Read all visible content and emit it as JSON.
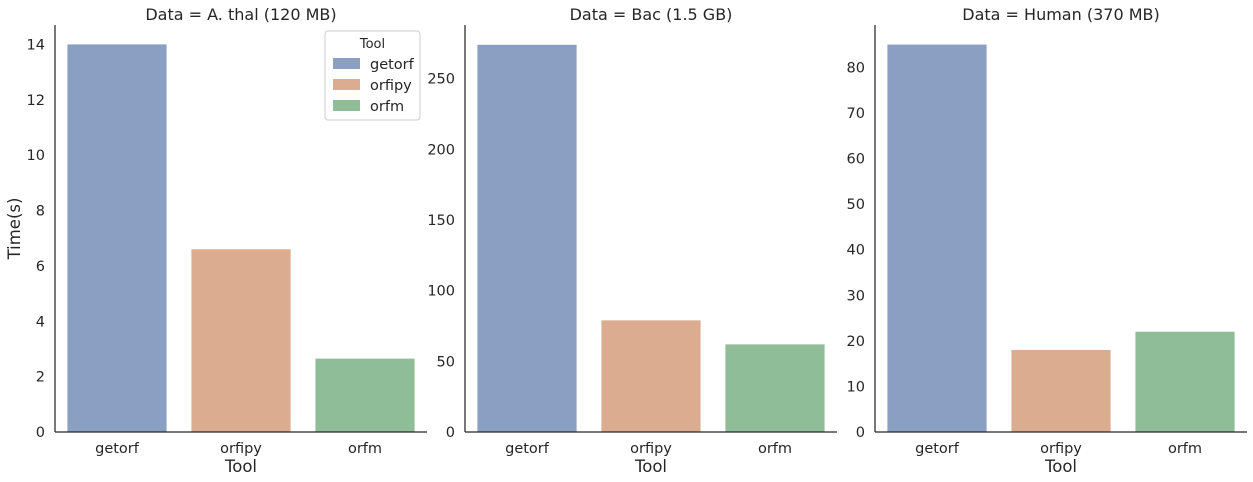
{
  "chart_data": {
    "type": "bar",
    "categories": [
      "getorf",
      "orfipy",
      "orfm"
    ],
    "xlabel": "Tool",
    "ylabel": "Time(s)",
    "colors": [
      "#8a9fc2",
      "#dbac90",
      "#8fbd97"
    ],
    "legend": {
      "title": "Tool",
      "placement": "top-right",
      "entries": [
        "getorf",
        "orfipy",
        "orfm"
      ]
    },
    "grid": false,
    "panels": [
      {
        "title": "Data = A. thal (120 MB)",
        "values": [
          14.0,
          6.6,
          2.65
        ],
        "ylim": [
          0,
          14.7
        ],
        "yticks": [
          0,
          2,
          4,
          6,
          8,
          10,
          12,
          14
        ]
      },
      {
        "title": "Data = Bac (1.5 GB)",
        "values": [
          274,
          79,
          62
        ],
        "ylim": [
          0,
          288
        ],
        "yticks": [
          0,
          50,
          100,
          150,
          200,
          250
        ]
      },
      {
        "title": "Data = Human (370 MB)",
        "values": [
          85,
          18,
          22
        ],
        "ylim": [
          0,
          89.3
        ],
        "yticks": [
          0,
          10,
          20,
          30,
          40,
          50,
          60,
          70,
          80
        ]
      }
    ]
  }
}
